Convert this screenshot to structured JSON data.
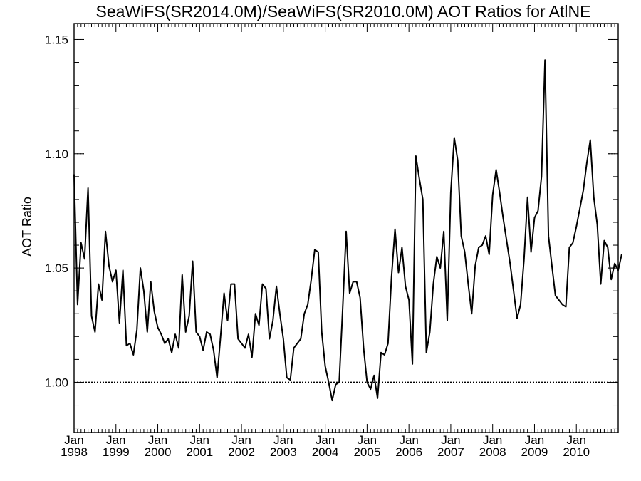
{
  "chart_data": {
    "type": "line",
    "title": "SeaWiFS(SR2014.0M)/SeaWiFS(SR2010.0M)  AOT Ratios for AtlNE",
    "xlabel": "",
    "ylabel": "AOT Ratio",
    "xlim": [
      "1998-01",
      "2010-12"
    ],
    "ylim": [
      0.978,
      1.157
    ],
    "reference_line": 1.0,
    "y_ticks": [
      "1.00",
      "1.05",
      "1.10",
      "1.15"
    ],
    "x_ticks": [
      {
        "month": "Jan",
        "year": "1998"
      },
      {
        "month": "Jan",
        "year": "1999"
      },
      {
        "month": "Jan",
        "year": "2000"
      },
      {
        "month": "Jan",
        "year": "2001"
      },
      {
        "month": "Jan",
        "year": "2002"
      },
      {
        "month": "Jan",
        "year": "2003"
      },
      {
        "month": "Jan",
        "year": "2004"
      },
      {
        "month": "Jan",
        "year": "2005"
      },
      {
        "month": "Jan",
        "year": "2006"
      },
      {
        "month": "Jan",
        "year": "2007"
      },
      {
        "month": "Jan",
        "year": "2008"
      },
      {
        "month": "Jan",
        "year": "2009"
      },
      {
        "month": "Jan",
        "year": "2010"
      }
    ],
    "series": [
      {
        "color": "#000000",
        "start": "1998-01",
        "values": [
          1.091,
          1.034,
          1.061,
          1.054,
          1.085,
          1.029,
          1.022,
          1.043,
          1.036,
          1.066,
          1.051,
          1.044,
          1.049,
          1.026,
          1.049,
          1.016,
          1.017,
          1.012,
          1.023,
          1.05,
          1.04,
          1.022,
          1.044,
          1.031,
          1.024,
          1.021,
          1.017,
          1.019,
          1.013,
          1.021,
          1.015,
          1.047,
          1.022,
          1.029,
          1.053,
          1.022,
          1.02,
          1.014,
          1.022,
          1.021,
          1.014,
          1.002,
          1.02,
          1.039,
          1.027,
          1.043,
          1.043,
          1.019,
          1.017,
          1.015,
          1.021,
          1.011,
          1.03,
          1.025,
          1.043,
          1.041,
          1.019,
          1.027,
          1.042,
          1.03,
          1.019,
          1.002,
          1.001,
          1.015,
          1.017,
          1.019,
          1.03,
          1.034,
          1.045,
          1.058,
          1.057,
          1.022,
          1.007,
          1.0,
          0.992,
          0.999,
          1.0,
          1.032,
          1.066,
          1.039,
          1.044,
          1.044,
          1.037,
          1.015,
          1.0,
          0.997,
          1.003,
          0.993,
          1.013,
          1.012,
          1.017,
          1.046,
          1.067,
          1.048,
          1.059,
          1.042,
          1.036,
          1.008,
          1.099,
          1.089,
          1.08,
          1.013,
          1.022,
          1.043,
          1.055,
          1.05,
          1.066,
          1.027,
          1.083,
          1.107,
          1.097,
          1.064,
          1.057,
          1.043,
          1.03,
          1.051,
          1.059,
          1.06,
          1.064,
          1.056,
          1.082,
          1.093,
          1.083,
          1.072,
          1.062,
          1.052,
          1.04,
          1.028,
          1.034,
          1.054,
          1.081,
          1.057,
          1.072,
          1.075,
          1.09,
          1.141,
          1.064,
          1.051,
          1.038,
          1.036,
          1.034,
          1.033,
          1.059,
          1.061,
          1.068,
          1.076,
          1.084,
          1.096,
          1.106,
          1.081,
          1.069,
          1.043,
          1.062,
          1.059,
          1.045,
          1.052,
          1.049,
          1.056
        ]
      }
    ]
  }
}
